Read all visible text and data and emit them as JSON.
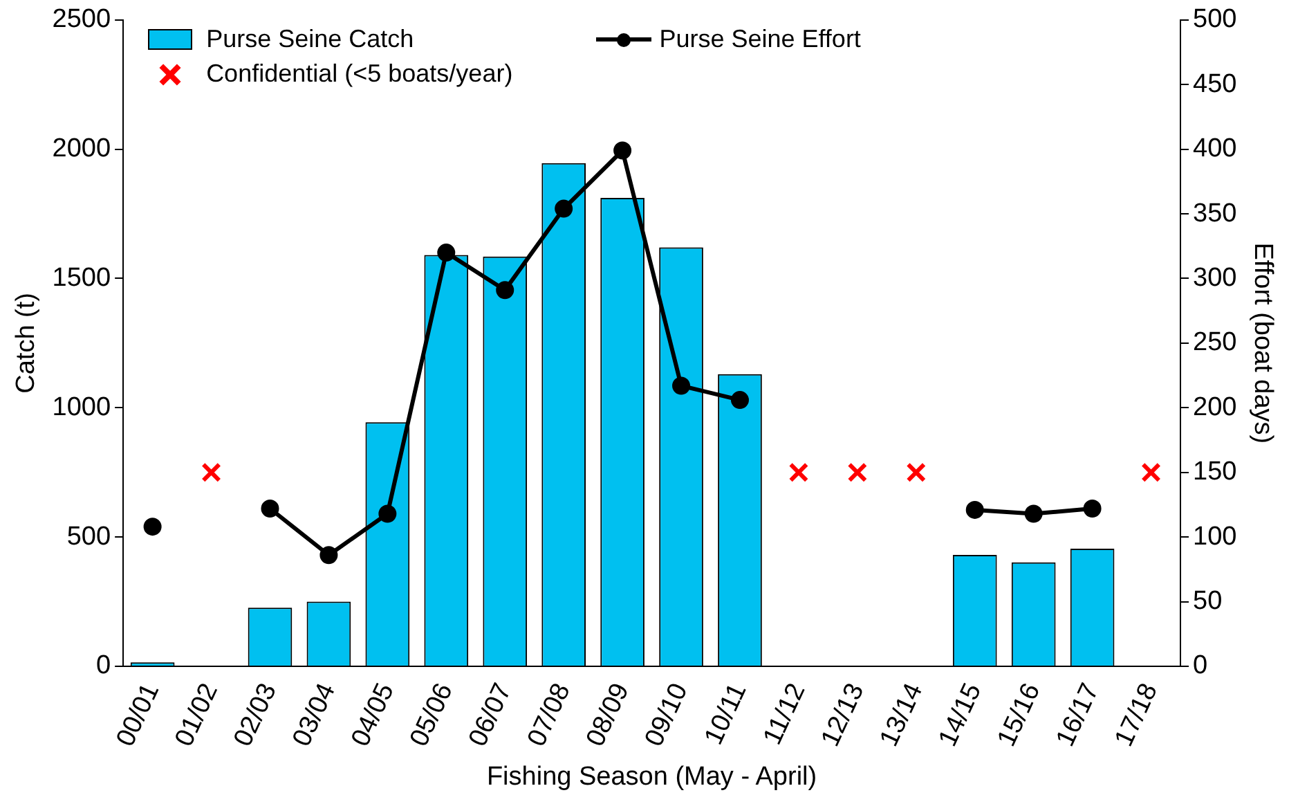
{
  "chart_data": {
    "type": "bar",
    "xlabel": "Fishing Season (May - April)",
    "ylabel": "Catch (t)",
    "y2label": "Effort (boat days)",
    "categories": [
      "00/01",
      "01/02",
      "02/03",
      "03/04",
      "04/05",
      "05/06",
      "06/07",
      "07/08",
      "08/09",
      "09/10",
      "10/11",
      "11/12",
      "12/13",
      "13/14",
      "14/15",
      "15/16",
      "16/17",
      "17/18"
    ],
    "series": [
      {
        "name": "Purse Seine Catch",
        "color": "#00c0f0",
        "values": [
          15,
          null,
          227,
          250,
          944,
          1591,
          1585,
          1946,
          1812,
          1620,
          1130,
          null,
          null,
          null,
          431,
          402,
          455,
          null
        ]
      },
      {
        "name": "Purse Seine Effort",
        "type": "line",
        "axis": "y2",
        "color": "#000000",
        "marker": "circle",
        "values": [
          108,
          null,
          122,
          86,
          118,
          320,
          291,
          354,
          399,
          217,
          206,
          null,
          null,
          null,
          121,
          118,
          122,
          null
        ]
      },
      {
        "name": "Confidential (<5 boats/year)",
        "type": "scatter",
        "axis": "y2",
        "color": "#ff0000",
        "marker": "cross",
        "values": [
          null,
          150,
          null,
          null,
          null,
          null,
          null,
          null,
          null,
          null,
          null,
          150,
          150,
          150,
          null,
          null,
          null,
          150
        ]
      }
    ],
    "ylim": [
      0,
      2500
    ],
    "yticks": [
      0,
      500,
      1000,
      1500,
      2000,
      2500
    ],
    "y2lim": [
      0,
      500
    ],
    "y2ticks": [
      0,
      50,
      100,
      150,
      200,
      250,
      300,
      350,
      400,
      450,
      500
    ],
    "grid": false,
    "legend": "top"
  }
}
